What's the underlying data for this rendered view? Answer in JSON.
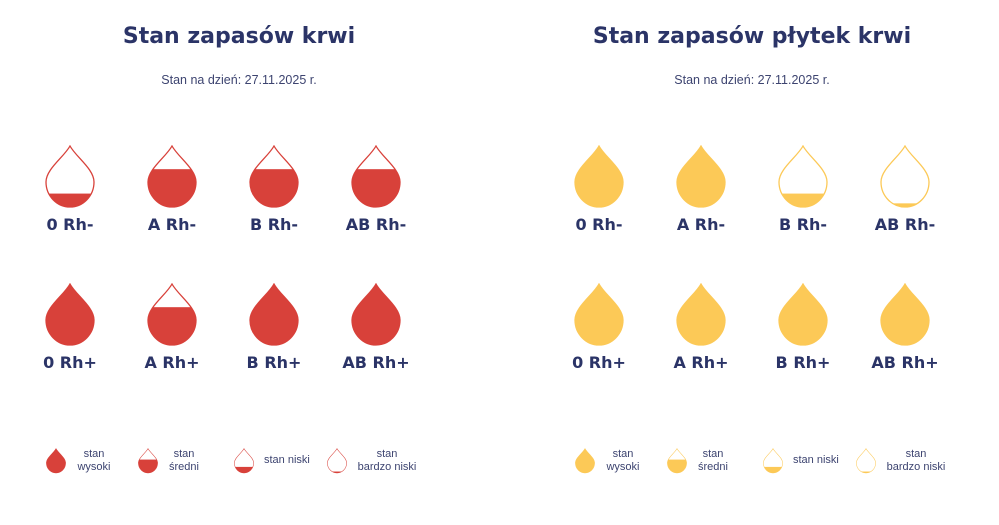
{
  "panels": [
    {
      "title": "Stan zapasów krwi",
      "date": "Stan na dzień: 27.11.2025 r.",
      "color": "#d8413a",
      "groups": [
        {
          "label": "0 Rh-",
          "level": 0.22
        },
        {
          "label": "A Rh-",
          "level": 0.62
        },
        {
          "label": "B Rh-",
          "level": 0.62
        },
        {
          "label": "AB Rh-",
          "level": 0.62
        },
        {
          "label": "0 Rh+",
          "level": 1.0
        },
        {
          "label": "A Rh+",
          "level": 0.62
        },
        {
          "label": "B Rh+",
          "level": 1.0
        },
        {
          "label": "AB Rh+",
          "level": 1.0
        }
      ],
      "legend": [
        {
          "line1": "stan",
          "line2": "wysoki",
          "level": 1.0
        },
        {
          "line1": "stan",
          "line2": "średni",
          "level": 0.55
        },
        {
          "line1": "stan niski",
          "line2": "",
          "level": 0.25
        },
        {
          "line1": "stan",
          "line2": "bardzo niski",
          "level": 0.06
        }
      ]
    },
    {
      "title": "Stan zapasów płytek krwi",
      "date": "Stan na dzień: 27.11.2025 r.",
      "color": "#fcc957",
      "groups": [
        {
          "label": "0 Rh-",
          "level": 1.0
        },
        {
          "label": "A Rh-",
          "level": 1.0
        },
        {
          "label": "B Rh-",
          "level": 0.22
        },
        {
          "label": "AB Rh-",
          "level": 0.06
        },
        {
          "label": "0 Rh+",
          "level": 1.0
        },
        {
          "label": "A Rh+",
          "level": 1.0
        },
        {
          "label": "B Rh+",
          "level": 1.0
        },
        {
          "label": "AB Rh+",
          "level": 1.0
        }
      ],
      "legend": [
        {
          "line1": "stan",
          "line2": "wysoki",
          "level": 1.0
        },
        {
          "line1": "stan",
          "line2": "średni",
          "level": 0.55
        },
        {
          "line1": "stan niski",
          "line2": "",
          "level": 0.25
        },
        {
          "line1": "stan",
          "line2": "bardzo niski",
          "level": 0.06
        }
      ]
    }
  ]
}
